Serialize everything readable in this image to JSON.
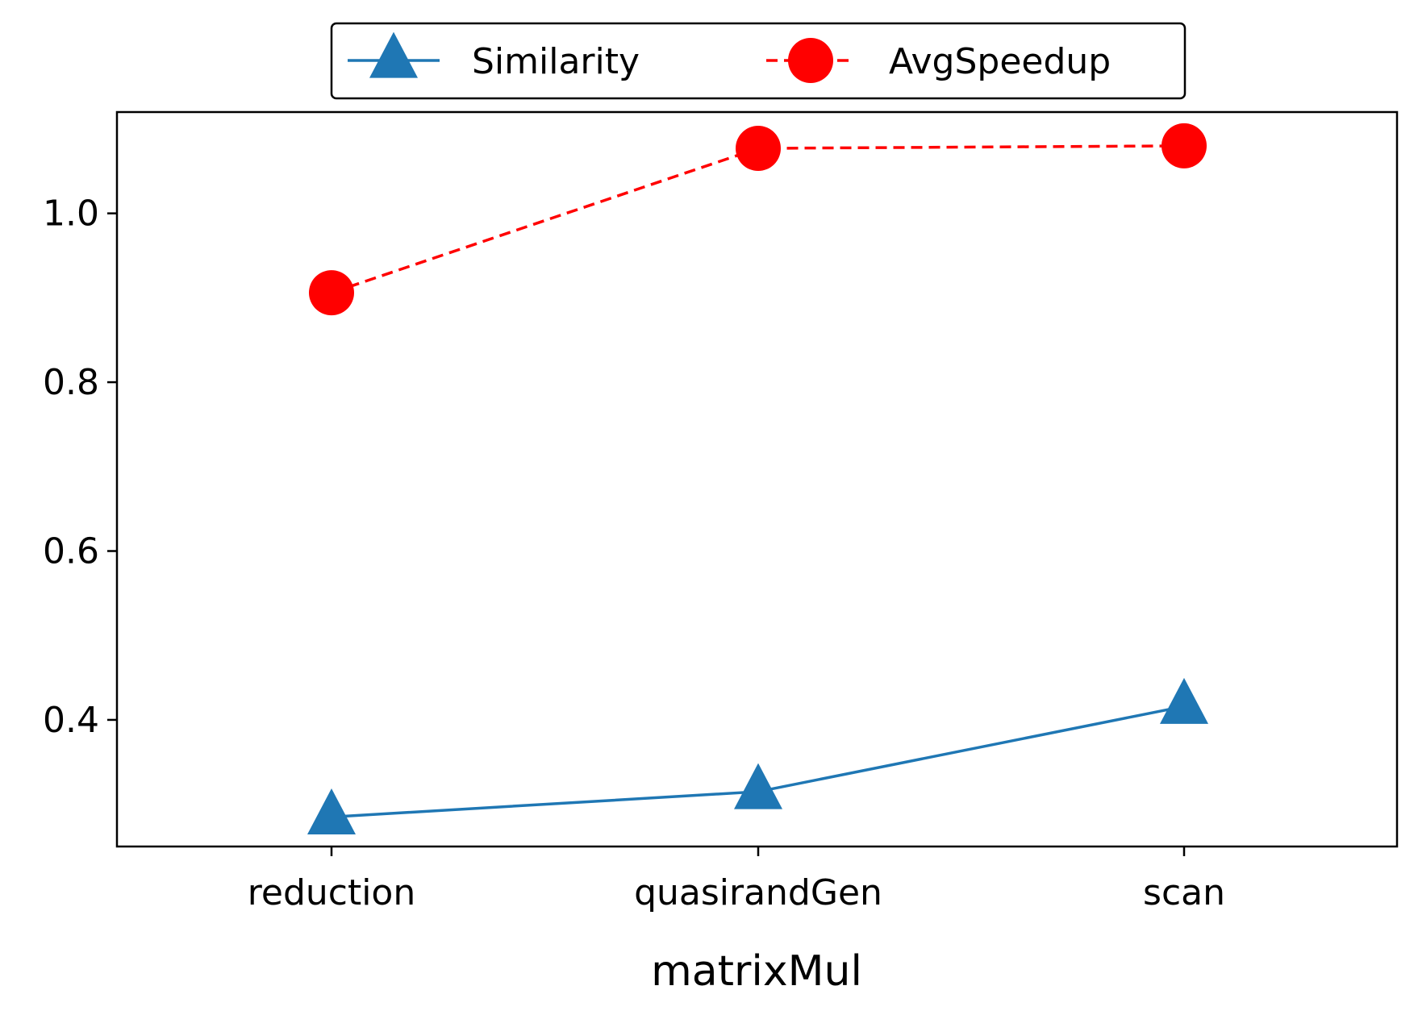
{
  "chart_data": {
    "type": "line",
    "categories": [
      "reduction",
      "quasirandGen",
      "scan"
    ],
    "xlabel": "matrixMul",
    "ylabel": "",
    "ylim": [
      0.25,
      1.12
    ],
    "yticks": [
      "0.4",
      "0.6",
      "0.8",
      "1.0"
    ],
    "grid": false,
    "legend_position": "top-center",
    "series": [
      {
        "name": "Similarity",
        "values": [
          0.285,
          0.315,
          0.416
        ],
        "color": "#1f77b4",
        "marker": "triangle",
        "line_style": "solid"
      },
      {
        "name": "AvgSpeedup",
        "values": [
          0.906,
          1.077,
          1.08
        ],
        "color": "#ff0000",
        "marker": "circle",
        "line_style": "dashed"
      }
    ]
  }
}
